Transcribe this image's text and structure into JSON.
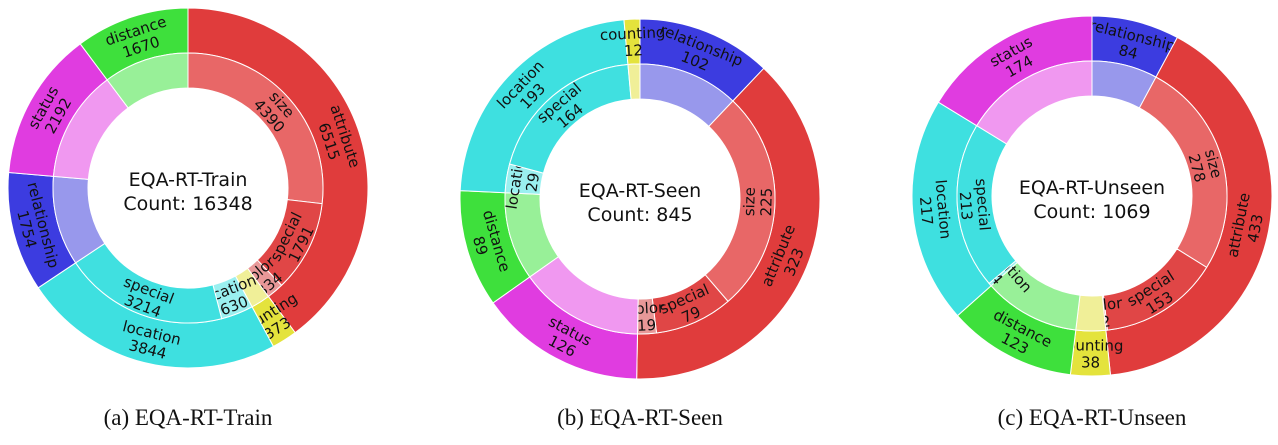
{
  "chart_data": [
    {
      "type": "pie",
      "subtype": "nested-donut",
      "caption": "(a) EQA-RT-Train",
      "center_title": "EQA-RT-Train",
      "center_count": "Count: 16348",
      "outer": [
        {
          "name": "attribute",
          "value": 6515,
          "color": "#e03c3c"
        },
        {
          "name": "counting",
          "value": 373,
          "color": "#e4e33c"
        },
        {
          "name": "location",
          "value": 3844,
          "color": "#3ee0e0"
        },
        {
          "name": "relationship",
          "value": 1754,
          "color": "#3c3ce0"
        },
        {
          "name": "status",
          "value": 2192,
          "color": "#e03ce0"
        },
        {
          "name": "distance",
          "value": 1670,
          "color": "#3ee03c"
        }
      ],
      "inner": [
        {
          "name": "size",
          "value": 4390,
          "color": "#e86767"
        },
        {
          "name": "special",
          "value": 1791,
          "color": "#e04646"
        },
        {
          "name": "color",
          "value": 334,
          "color": "#e89898"
        },
        {
          "name": "",
          "value": 373,
          "color": "#f0ef98"
        },
        {
          "name": "location",
          "value": 630,
          "color": "#9af0f0"
        },
        {
          "name": "special",
          "value": 3214,
          "color": "#40e0e0"
        },
        {
          "name": "",
          "value": 1754,
          "color": "#9898ec"
        },
        {
          "name": "",
          "value": 2192,
          "color": "#f098f0"
        },
        {
          "name": "",
          "value": 1670,
          "color": "#98f098"
        }
      ]
    },
    {
      "type": "pie",
      "subtype": "nested-donut",
      "caption": "(b) EQA-RT-Seen",
      "center_title": "EQA-RT-Seen",
      "center_count": "Count: 845",
      "outer": [
        {
          "name": "relationship",
          "value": 102,
          "color": "#3c3ce0"
        },
        {
          "name": "attribute",
          "value": 323,
          "color": "#e03c3c"
        },
        {
          "name": "status",
          "value": 126,
          "color": "#e03ce0"
        },
        {
          "name": "distance",
          "value": 89,
          "color": "#3ee03c"
        },
        {
          "name": "location",
          "value": 193,
          "color": "#3ee0e0"
        },
        {
          "name": "counting",
          "value": 12,
          "color": "#e4e33c"
        }
      ],
      "inner": [
        {
          "name": "",
          "value": 102,
          "color": "#9898ec"
        },
        {
          "name": "size",
          "value": 225,
          "color": "#e86767"
        },
        {
          "name": "special",
          "value": 79,
          "color": "#e04646"
        },
        {
          "name": "color",
          "value": 19,
          "color": "#e89898"
        },
        {
          "name": "",
          "value": 126,
          "color": "#f098f0"
        },
        {
          "name": "",
          "value": 89,
          "color": "#98f098"
        },
        {
          "name": "location",
          "value": 29,
          "color": "#9af0f0"
        },
        {
          "name": "special",
          "value": 164,
          "color": "#40e0e0"
        },
        {
          "name": "",
          "value": 12,
          "color": "#f0ef98"
        }
      ]
    },
    {
      "type": "pie",
      "subtype": "nested-donut",
      "caption": "(c) EQA-RT-Unseen",
      "center_title": "EQA-RT-Unseen",
      "center_count": "Count: 1069",
      "outer": [
        {
          "name": "relationship",
          "value": 84,
          "color": "#3c3ce0"
        },
        {
          "name": "attribute",
          "value": 433,
          "color": "#e03c3c"
        },
        {
          "name": "counting",
          "value": 38,
          "color": "#e4e33c"
        },
        {
          "name": "distance",
          "value": 123,
          "color": "#3ee03c"
        },
        {
          "name": "location",
          "value": 217,
          "color": "#3ee0e0"
        },
        {
          "name": "status",
          "value": 174,
          "color": "#e03ce0"
        }
      ],
      "inner": [
        {
          "name": "",
          "value": 84,
          "color": "#9898ec"
        },
        {
          "name": "size",
          "value": 278,
          "color": "#e86767"
        },
        {
          "name": "special",
          "value": 153,
          "color": "#e04646"
        },
        {
          "name": "color",
          "value": 2,
          "color": "#e89898"
        },
        {
          "name": "",
          "value": 38,
          "color": "#f0ef98"
        },
        {
          "name": "",
          "value": 123,
          "color": "#98f098"
        },
        {
          "name": "location",
          "value": 4,
          "color": "#9af0f0"
        },
        {
          "name": "special",
          "value": 213,
          "color": "#40e0e0"
        },
        {
          "name": "",
          "value": 174,
          "color": "#f098f0"
        }
      ]
    }
  ]
}
